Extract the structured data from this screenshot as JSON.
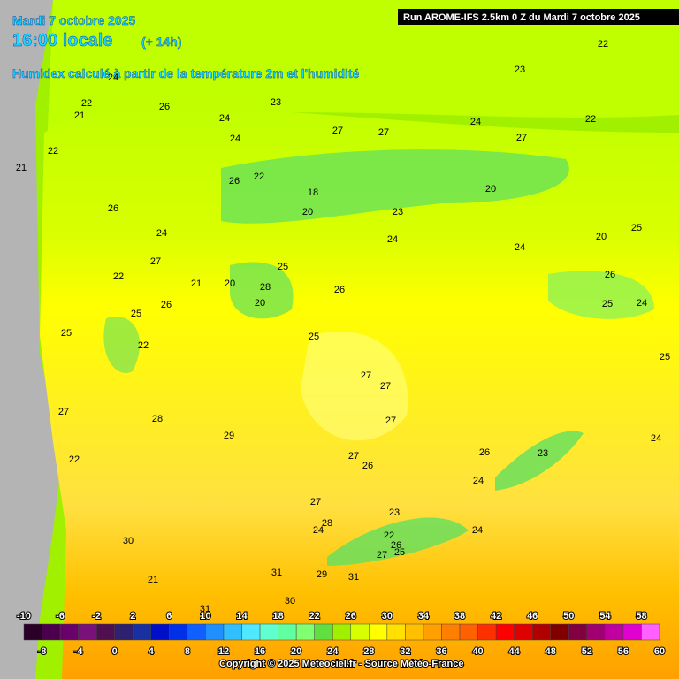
{
  "header": {
    "date": "Mardi 7 octobre 2025",
    "time": "16:00 locale",
    "lead": "(+ 14h)",
    "description": "Humidex calculé à partir de la température 2m et l'humidité",
    "run": "Run AROME-IFS 2.5km 0 Z du Mardi 7 octobre 2025"
  },
  "contour_labels": [
    22,
    23,
    24,
    23,
    22,
    26,
    21,
    24,
    24,
    22,
    27,
    27,
    24,
    27,
    22,
    26,
    22,
    21,
    18,
    20,
    23,
    20,
    24,
    26,
    24,
    20,
    24,
    25,
    26,
    27,
    25,
    28,
    20,
    26,
    21,
    22,
    20,
    25,
    22,
    25,
    26,
    24,
    27,
    27,
    27,
    25,
    24,
    29,
    27,
    26,
    26,
    24,
    23,
    27,
    24,
    30,
    28,
    23,
    27,
    24,
    22,
    26,
    25,
    22,
    27,
    21,
    31,
    29,
    31,
    30,
    31,
    25,
    28,
    25
  ],
  "scale": {
    "ticks": [
      -10,
      -8,
      -6,
      -4,
      -2,
      0,
      2,
      4,
      6,
      8,
      10,
      12,
      14,
      16,
      18,
      20,
      22,
      24,
      26,
      28,
      30,
      32,
      34,
      36,
      38,
      40,
      42,
      44,
      46,
      48,
      50,
      52,
      54,
      56,
      58,
      60
    ],
    "colors": [
      "#2a0028",
      "#4a004a",
      "#6a006a",
      "#7a107a",
      "#501050",
      "#302070",
      "#1830a0",
      "#0010c8",
      "#0030e8",
      "#1060ff",
      "#2090ff",
      "#30c0ff",
      "#50e8ff",
      "#60ffd0",
      "#60ffa0",
      "#80ff70",
      "#60e040",
      "#a0f000",
      "#d8ff00",
      "#ffff00",
      "#ffe000",
      "#ffc000",
      "#ffa000",
      "#ff8000",
      "#ff6000",
      "#ff3000",
      "#ff0000",
      "#e00000",
      "#b00000",
      "#800000",
      "#800040",
      "#a00070",
      "#c000a0",
      "#e000d0",
      "#ff60ff"
    ]
  },
  "footer": {
    "copyright": "Copyright © 2025 Meteociel.fr - Source Météo-France"
  }
}
